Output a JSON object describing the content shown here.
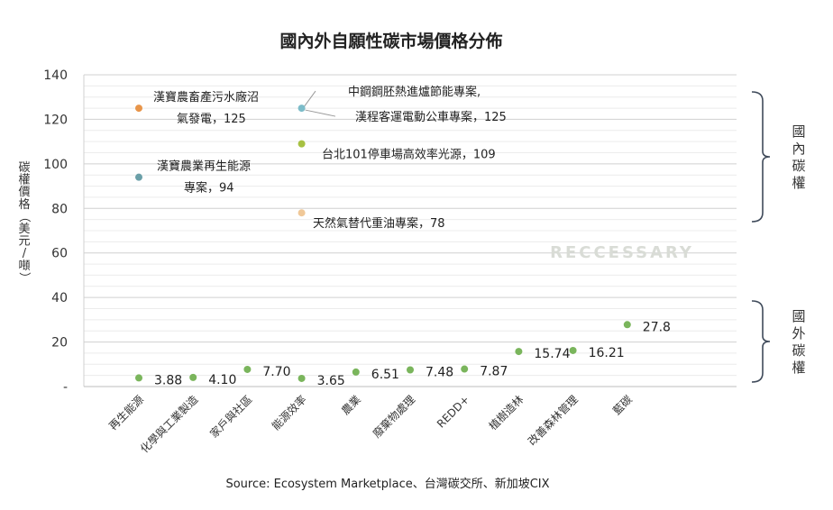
{
  "chart_data": {
    "type": "scatter",
    "title": "國內外自願性碳市場價格分佈",
    "ylabel": "碳權價格（美元/噸）",
    "ylim": [
      0,
      140
    ],
    "yticks": [
      0,
      20,
      40,
      60,
      80,
      100,
      120,
      140
    ],
    "ytick_labels": [
      "-",
      "20",
      "40",
      "60",
      "80",
      "100",
      "120",
      "140"
    ],
    "grid": true,
    "categories": [
      "再生能源",
      "化學與工業製造",
      "家戶與社區",
      "能源效率",
      "農業",
      "廢棄物處理",
      "REDD+",
      "植樹造林",
      "改善森林管理",
      "藍碳"
    ],
    "series": [
      {
        "name": "國外碳權",
        "color": "#7ab55c",
        "points": [
          {
            "cat": 0,
            "y": 3.88,
            "label": "3.88"
          },
          {
            "cat": 1,
            "y": 4.1,
            "label": "4.10"
          },
          {
            "cat": 2,
            "y": 7.7,
            "label": "7.70"
          },
          {
            "cat": 3,
            "y": 3.65,
            "label": "3.65"
          },
          {
            "cat": 4,
            "y": 6.51,
            "label": "6.51"
          },
          {
            "cat": 5,
            "y": 7.48,
            "label": "7.48"
          },
          {
            "cat": 6,
            "y": 7.87,
            "label": "7.87"
          },
          {
            "cat": 7,
            "y": 15.74,
            "label": "15.74"
          },
          {
            "cat": 8,
            "y": 16.21,
            "label": "16.21"
          },
          {
            "cat": 9,
            "y": 27.8,
            "label": "27.8"
          }
        ]
      },
      {
        "name": "國內碳權",
        "points": [
          {
            "cat": 0,
            "y": 125,
            "color": "#e8954a",
            "lines": [
              "漢寶農畜產污水廠沼",
              "氣發電，125"
            ]
          },
          {
            "cat": 0,
            "y": 94,
            "color": "#6a9fa8",
            "lines": [
              "漢寶農業再生能源",
              "專案，94"
            ]
          },
          {
            "cat": 3,
            "y": 125,
            "color": "#7cbcc9",
            "lines": [
              "中鋼鋼胚熱進爐節能專案,",
              "漢程客運電動公車專案，125"
            ]
          },
          {
            "cat": 3,
            "y": 109,
            "color": "#a7c142",
            "lines": [
              "台北101停車場高效率光源，109"
            ]
          },
          {
            "cat": 3,
            "y": 78,
            "color": "#f0c898",
            "lines": [
              "天然氣替代重油專案，78"
            ]
          }
        ]
      }
    ],
    "groups": {
      "domestic": "國內碳權",
      "foreign": "國外碳權"
    },
    "watermark": "RECCESSARY",
    "source": "Source: Ecosystem Marketplace、台灣碳交所、新加坡CIX"
  }
}
